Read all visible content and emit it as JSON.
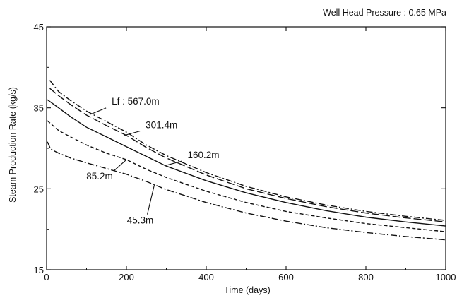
{
  "chart_data": {
    "type": "line",
    "title": "Well Head Pressure : 0.65 MPa",
    "xlabel": "Time (days)",
    "ylabel": "Steam Production Rate (kg/s)",
    "xlim": [
      0,
      1000
    ],
    "ylim": [
      15,
      45
    ],
    "x_ticks": [
      0,
      200,
      400,
      600,
      800,
      1000
    ],
    "y_ticks": [
      15,
      25,
      35,
      45
    ],
    "grid": false,
    "legend": "none",
    "series": [
      {
        "name": "567.0m",
        "style": "dash-dot",
        "x": [
          8,
          30,
          60,
          100,
          150,
          200,
          250,
          300,
          400,
          500,
          600,
          700,
          800,
          900,
          1000
        ],
        "y": [
          38.4,
          37.0,
          35.9,
          34.6,
          33.3,
          32.0,
          30.4,
          29.1,
          27.0,
          25.3,
          24.0,
          23.0,
          22.2,
          21.6,
          21.1
        ]
      },
      {
        "name": "301.4m",
        "style": "long-dash",
        "x": [
          8,
          30,
          60,
          100,
          150,
          200,
          250,
          300,
          400,
          500,
          600,
          700,
          800,
          900,
          1000
        ],
        "y": [
          37.4,
          36.5,
          35.4,
          34.1,
          32.8,
          31.6,
          30.1,
          28.8,
          26.7,
          25.0,
          23.8,
          22.8,
          22.0,
          21.4,
          20.9
        ]
      },
      {
        "name": "160.2m",
        "style": "solid",
        "x": [
          2,
          30,
          60,
          100,
          150,
          200,
          250,
          300,
          400,
          500,
          600,
          700,
          800,
          900,
          1000
        ],
        "y": [
          36.0,
          35.0,
          33.9,
          32.6,
          31.4,
          30.2,
          29.0,
          27.8,
          26.0,
          24.5,
          23.3,
          22.3,
          21.5,
          20.9,
          20.4
        ]
      },
      {
        "name": "85.2m",
        "style": "short-dash",
        "x": [
          2,
          30,
          60,
          100,
          150,
          200,
          250,
          300,
          400,
          500,
          600,
          700,
          800,
          900,
          1000
        ],
        "y": [
          33.4,
          32.2,
          31.4,
          30.4,
          29.4,
          28.6,
          27.4,
          26.4,
          24.7,
          23.3,
          22.2,
          21.4,
          20.7,
          20.2,
          19.7
        ]
      },
      {
        "name": "45.3m",
        "style": "dash-dot",
        "x": [
          2,
          10,
          30,
          60,
          100,
          150,
          200,
          250,
          300,
          400,
          500,
          600,
          700,
          800,
          900,
          1000
        ],
        "y": [
          30.8,
          29.9,
          29.4,
          28.8,
          28.2,
          27.5,
          26.8,
          25.9,
          24.9,
          23.3,
          22.0,
          21.0,
          20.2,
          19.6,
          19.1,
          18.7
        ]
      }
    ],
    "annotations": [
      {
        "text": "Lf : 567.0m",
        "series": "567.0m",
        "at_x": 110,
        "at_y": 34.2
      },
      {
        "text": "301.4m",
        "series": "301.4m",
        "at_x": 195,
        "at_y": 31.6
      },
      {
        "text": "160.2m",
        "series": "160.2m",
        "at_x": 300,
        "at_y": 27.9
      },
      {
        "text": "85.2m",
        "series": "85.2m",
        "at_x": 200,
        "at_y": 28.6
      },
      {
        "text": "45.3m",
        "series": "45.3m",
        "at_x": 270,
        "at_y": 25.5
      }
    ]
  }
}
